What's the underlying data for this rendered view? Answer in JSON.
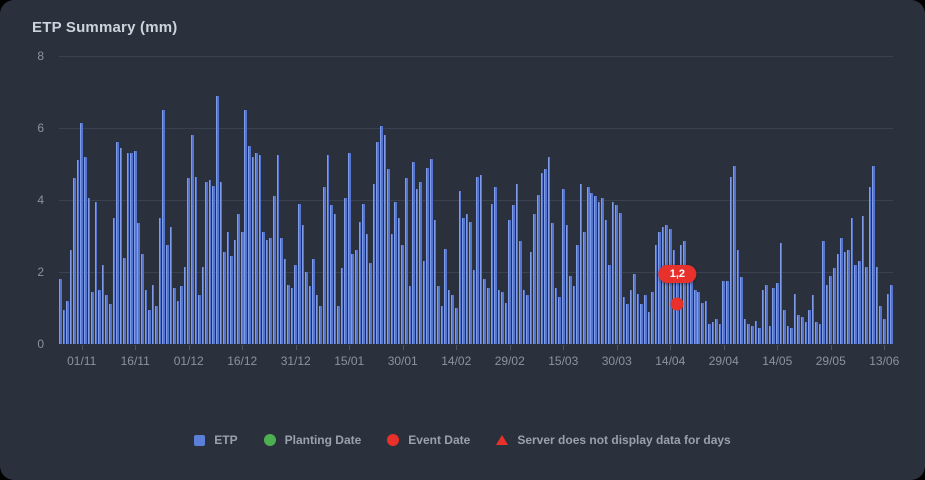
{
  "card": {
    "title": "ETP Summary (mm)"
  },
  "colors": {
    "background": "#2b313c",
    "bar_blue": "#5c80d8",
    "grid": "#3a4150",
    "axis_text": "#8b93a0",
    "legend_text": "#99a1ac",
    "green": "#4caf50",
    "red": "#e8312a",
    "title_text": "#ccd3dc"
  },
  "legend": [
    {
      "name": "etp",
      "label": "ETP",
      "marker": "square",
      "color": "#5c80d8"
    },
    {
      "name": "planting-date",
      "label": "Planting Date",
      "marker": "circle",
      "color": "#4caf50"
    },
    {
      "name": "event-date",
      "label": "Event Date",
      "marker": "circle",
      "color": "#e8312a"
    },
    {
      "name": "no-data-days",
      "label": "Server does not display data for days",
      "marker": "triangle",
      "color": "#e8312a"
    }
  ],
  "chart_data": {
    "type": "bar",
    "title": "ETP Summary (mm)",
    "xlabel": "",
    "ylabel": "",
    "ylim": [
      0,
      8
    ],
    "y_ticks": [
      0,
      2,
      4,
      6,
      8
    ],
    "grid": "horizontal",
    "legend_position": "bottom",
    "x_tick_labels": [
      "01/11",
      "16/11",
      "01/12",
      "16/12",
      "31/12",
      "15/01",
      "30/01",
      "14/02",
      "29/02",
      "15/03",
      "30/03",
      "14/04",
      "29/04",
      "14/05",
      "29/05",
      "13/06"
    ],
    "x_tick_day_indices": [
      6,
      21,
      36,
      51,
      66,
      81,
      96,
      111,
      126,
      141,
      156,
      171,
      186,
      201,
      216,
      231
    ],
    "series": [
      {
        "name": "ETP",
        "values": [
          1.8,
          0.95,
          1.2,
          2.6,
          4.6,
          5.1,
          6.15,
          5.2,
          4.05,
          1.45,
          3.95,
          1.5,
          2.2,
          1.35,
          1.1,
          3.5,
          5.6,
          5.45,
          2.4,
          5.3,
          5.3,
          5.35,
          3.35,
          2.5,
          1.5,
          0.95,
          1.65,
          1.05,
          3.5,
          6.5,
          2.75,
          3.25,
          1.55,
          1.2,
          1.6,
          2.15,
          4.6,
          5.8,
          4.65,
          1.35,
          2.15,
          4.5,
          4.55,
          4.4,
          6.9,
          4.5,
          2.55,
          3.1,
          2.45,
          2.9,
          3.6,
          3.1,
          6.5,
          5.5,
          5.2,
          5.3,
          5.25,
          3.1,
          2.9,
          2.95,
          4.1,
          5.25,
          2.95,
          2.35,
          1.65,
          1.55,
          2.2,
          3.9,
          3.3,
          2.0,
          1.6,
          2.35,
          1.35,
          1.05,
          4.35,
          5.25,
          3.85,
          3.6,
          1.05,
          2.1,
          4.05,
          5.3,
          2.5,
          2.6,
          3.4,
          3.9,
          3.05,
          2.25,
          4.45,
          5.6,
          6.05,
          5.8,
          4.85,
          3.05,
          3.95,
          3.5,
          2.75,
          4.6,
          1.6,
          5.05,
          4.3,
          4.5,
          2.3,
          4.9,
          5.15,
          3.45,
          1.6,
          1.05,
          2.65,
          1.5,
          1.35,
          1.0,
          4.25,
          3.5,
          3.6,
          3.4,
          2.05,
          4.65,
          4.7,
          1.8,
          1.55,
          3.9,
          4.35,
          1.5,
          1.45,
          1.15,
          3.45,
          3.85,
          4.45,
          2.85,
          1.5,
          1.35,
          2.55,
          3.6,
          4.15,
          4.75,
          4.85,
          5.2,
          3.35,
          1.55,
          1.3,
          4.3,
          3.3,
          1.9,
          1.6,
          2.75,
          4.45,
          3.1,
          4.35,
          4.2,
          4.1,
          3.95,
          4.05,
          3.45,
          2.2,
          3.95,
          3.85,
          3.65,
          1.3,
          1.1,
          1.5,
          1.95,
          1.4,
          1.1,
          1.35,
          0.9,
          1.45,
          2.75,
          3.1,
          3.25,
          3.3,
          3.2,
          2.6,
          2.2,
          2.75,
          2.85,
          2.0,
          1.9,
          1.5,
          1.45,
          1.15,
          1.2,
          0.55,
          0.6,
          0.7,
          0.55,
          1.75,
          1.75,
          4.65,
          4.95,
          2.6,
          1.85,
          0.7,
          0.55,
          0.5,
          0.65,
          0.45,
          1.5,
          1.65,
          0.5,
          1.55,
          1.7,
          2.8,
          0.95,
          0.5,
          0.45,
          1.4,
          0.8,
          0.75,
          0.6,
          0.95,
          1.35,
          0.6,
          0.55,
          2.85,
          1.65,
          1.9,
          2.1,
          2.5,
          2.95,
          2.55,
          2.6,
          3.5,
          2.2,
          2.3,
          3.55,
          2.15,
          4.35,
          4.95,
          2.15,
          1.05,
          0.7,
          1.4,
          1.65
        ]
      }
    ],
    "event_marker": {
      "label": "1,2",
      "value": 1.2,
      "day_index": 173
    }
  }
}
